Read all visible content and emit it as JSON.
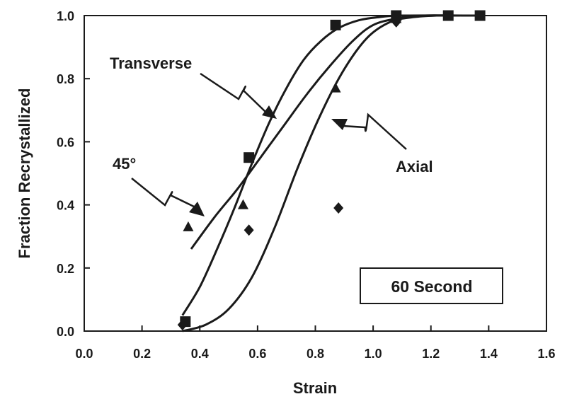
{
  "chart_data": {
    "type": "scatter",
    "xlabel": "Strain",
    "ylabel": "Fraction Recrystallized",
    "xlim": [
      0.0,
      1.6
    ],
    "ylim": [
      0.0,
      1.0
    ],
    "x_ticks": [
      "0.0",
      "0.2",
      "0.4",
      "0.6",
      "0.8",
      "1.0",
      "1.2",
      "1.4",
      "1.6"
    ],
    "y_ticks": [
      "0.0",
      "0.2",
      "0.4",
      "0.6",
      "0.8",
      "1.0"
    ],
    "grid": false,
    "legend": "none",
    "series": [
      {
        "name": "Transverse",
        "marker": "square",
        "points": [
          {
            "x": 0.35,
            "y": 0.03
          },
          {
            "x": 0.57,
            "y": 0.55
          },
          {
            "x": 0.87,
            "y": 0.97
          },
          {
            "x": 1.08,
            "y": 1.0
          },
          {
            "x": 1.26,
            "y": 1.0
          },
          {
            "x": 1.37,
            "y": 1.0
          }
        ],
        "curve": [
          {
            "x": 0.34,
            "y": 0.05
          },
          {
            "x": 0.4,
            "y": 0.14
          },
          {
            "x": 0.46,
            "y": 0.26
          },
          {
            "x": 0.52,
            "y": 0.39
          },
          {
            "x": 0.58,
            "y": 0.53
          },
          {
            "x": 0.64,
            "y": 0.66
          },
          {
            "x": 0.7,
            "y": 0.77
          },
          {
            "x": 0.76,
            "y": 0.86
          },
          {
            "x": 0.82,
            "y": 0.92
          },
          {
            "x": 0.88,
            "y": 0.96
          },
          {
            "x": 0.95,
            "y": 0.985
          },
          {
            "x": 1.02,
            "y": 0.995
          },
          {
            "x": 1.1,
            "y": 1.0
          },
          {
            "x": 1.37,
            "y": 1.0
          }
        ]
      },
      {
        "name": "45°",
        "marker": "triangle",
        "points": [
          {
            "x": 0.36,
            "y": 0.33
          },
          {
            "x": 0.55,
            "y": 0.4
          },
          {
            "x": 0.87,
            "y": 0.77
          },
          {
            "x": 1.08,
            "y": 0.99
          }
        ],
        "curve": [
          {
            "x": 0.37,
            "y": 0.26
          },
          {
            "x": 0.45,
            "y": 0.36
          },
          {
            "x": 0.53,
            "y": 0.45
          },
          {
            "x": 0.61,
            "y": 0.55
          },
          {
            "x": 0.69,
            "y": 0.65
          },
          {
            "x": 0.77,
            "y": 0.75
          },
          {
            "x": 0.85,
            "y": 0.84
          },
          {
            "x": 0.93,
            "y": 0.92
          },
          {
            "x": 1.0,
            "y": 0.97
          },
          {
            "x": 1.08,
            "y": 0.99
          },
          {
            "x": 1.18,
            "y": 1.0
          },
          {
            "x": 1.26,
            "y": 1.0
          }
        ]
      },
      {
        "name": "Axial",
        "marker": "diamond",
        "points": [
          {
            "x": 0.34,
            "y": 0.02
          },
          {
            "x": 0.57,
            "y": 0.32
          },
          {
            "x": 0.88,
            "y": 0.39
          },
          {
            "x": 1.08,
            "y": 0.98
          }
        ],
        "curve": [
          {
            "x": 0.34,
            "y": 0.0
          },
          {
            "x": 0.42,
            "y": 0.02
          },
          {
            "x": 0.5,
            "y": 0.07
          },
          {
            "x": 0.58,
            "y": 0.17
          },
          {
            "x": 0.66,
            "y": 0.33
          },
          {
            "x": 0.74,
            "y": 0.52
          },
          {
            "x": 0.82,
            "y": 0.69
          },
          {
            "x": 0.9,
            "y": 0.83
          },
          {
            "x": 0.98,
            "y": 0.93
          },
          {
            "x": 1.06,
            "y": 0.98
          },
          {
            "x": 1.14,
            "y": 0.995
          },
          {
            "x": 1.22,
            "y": 1.0
          },
          {
            "x": 1.3,
            "y": 1.0
          }
        ]
      }
    ],
    "annotations": {
      "transverse": "Transverse",
      "angle": "45°",
      "axial": "Axial"
    },
    "box_label": "60 Second",
    "colors": {
      "ink": "#1a1a1a",
      "background": "#ffffff"
    }
  }
}
